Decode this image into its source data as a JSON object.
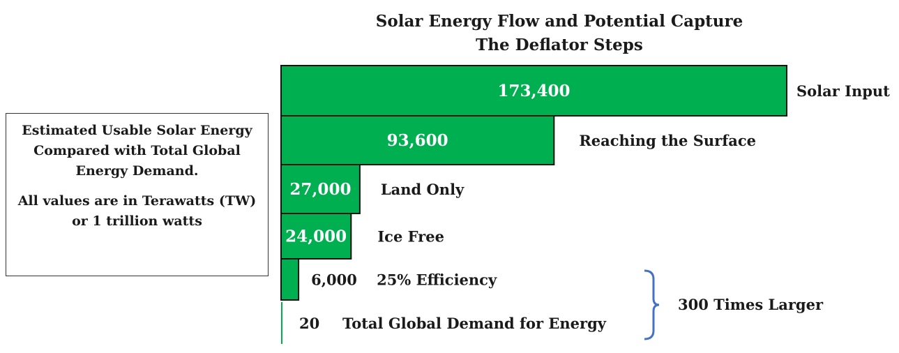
{
  "chart_data": {
    "type": "bar",
    "orientation": "horizontal",
    "title": "Solar Energy Flow and Potential Capture",
    "subtitle": "The Deflator Steps",
    "categories": [
      "Solar Input",
      "Reaching the Surface",
      "Land Only",
      "Ice Free",
      "25% Efficiency",
      "Total Global Demand for Energy"
    ],
    "values": [
      173400,
      93600,
      27000,
      24000,
      6000,
      20
    ],
    "value_labels": [
      "173,400",
      "93,600",
      "27,000",
      "24,000",
      "6,000",
      "20"
    ],
    "bar_color": "#00b050",
    "annotation": "300 Times Larger"
  },
  "info_box": {
    "heading": "Estimated Usable Solar Energy Compared with Total Global Energy Demand.",
    "note": "All values are in Terawatts (TW) or 1 trillion watts"
  }
}
